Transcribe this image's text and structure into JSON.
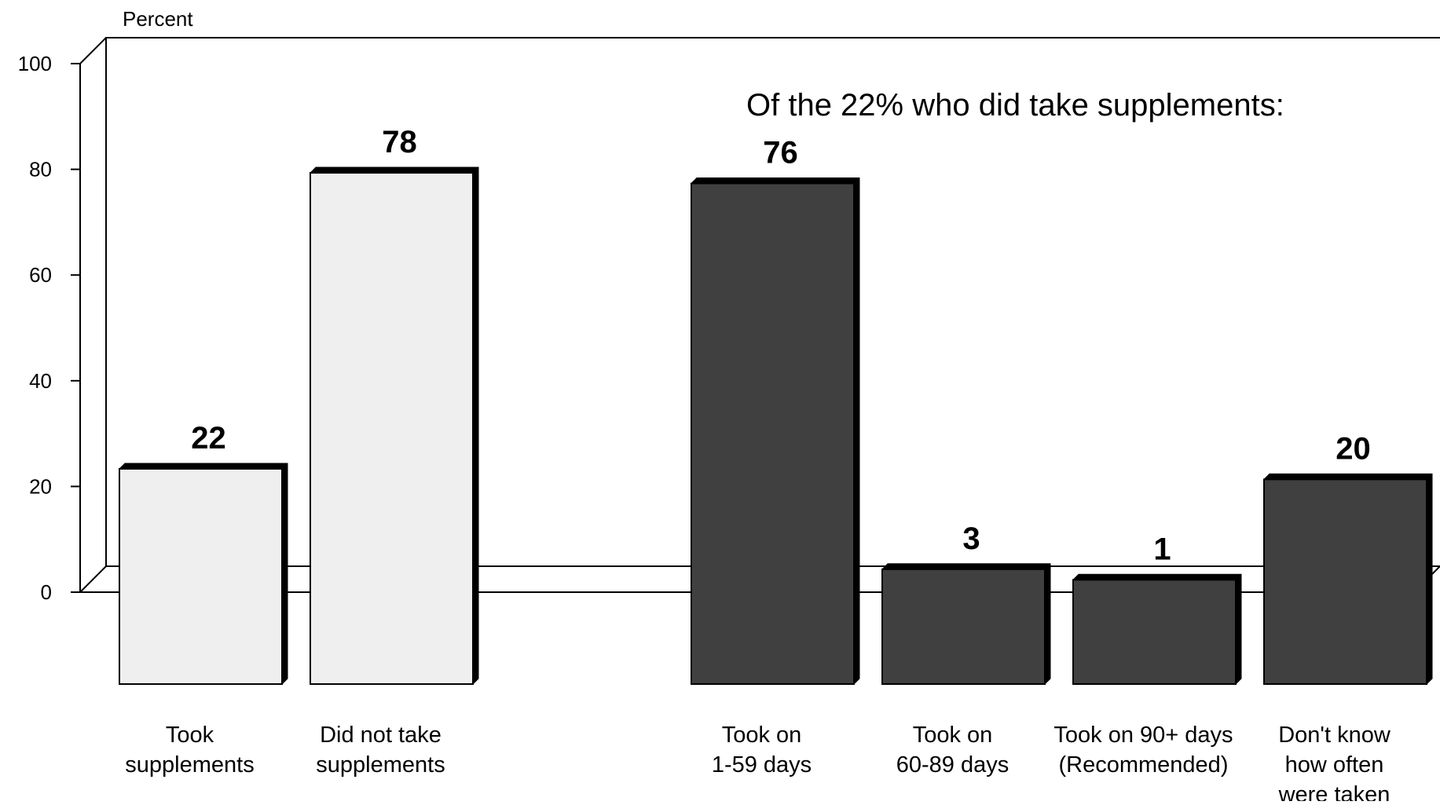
{
  "chart_data": {
    "type": "bar",
    "ylabel": "Percent",
    "ylim": [
      0,
      100
    ],
    "yticks": [
      0,
      20,
      40,
      60,
      80,
      100
    ],
    "annotation": "Of the 22% who did take supplements:",
    "categories": [
      "Took supplements",
      "Did not take supplements",
      "Took on 1-59 days",
      "Took on 60-89 days",
      "Took on 90+ days (Recommended)",
      "Don't know how often were taken"
    ],
    "category_label_lines": [
      [
        "Took",
        "supplements"
      ],
      [
        "Did not take",
        "supplements"
      ],
      [
        "Took on",
        "1-59 days"
      ],
      [
        "Took on",
        "60-89 days"
      ],
      [
        "Took on 90+ days",
        "(Recommended)"
      ],
      [
        "Don't know",
        "how often",
        "were taken"
      ]
    ],
    "values": [
      22,
      78,
      76,
      3,
      1,
      20
    ],
    "value_labels": [
      "22",
      "78",
      "76",
      "3",
      "1",
      "20"
    ],
    "bar_colors": [
      "#efefef",
      "#efefef",
      "#404040",
      "#404040",
      "#404040",
      "#404040"
    ],
    "grid": false,
    "legend": "none"
  }
}
